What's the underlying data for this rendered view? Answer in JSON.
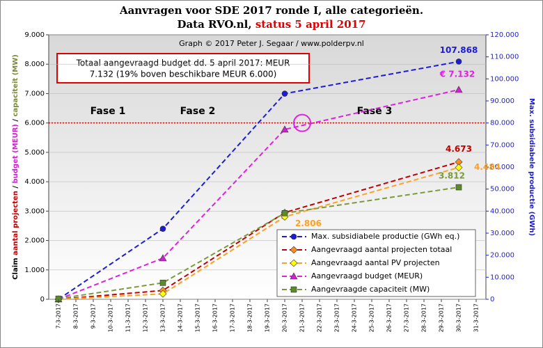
{
  "chart_data": {
    "type": "line",
    "title": [
      "Aanvragen voor SDE 2017 ronde I, alle categorieën.",
      "Data RVO.nl, ",
      "status 5 april 2017"
    ],
    "credit": "Graph  © 2017 Peter J. Segaar / www.polderpv.nl",
    "box_text": [
      "Totaal aangevraagd budget dd. 5 april 2017: MEUR",
      "7.132 (19% boven beschikbare MEUR 6.000)"
    ],
    "phases": [
      "Fase 1",
      "Fase 2",
      "Fase 3"
    ],
    "y_label": [
      "Claim ",
      "aantal projecten",
      " / ",
      "budget (MEUR)",
      " / ",
      "capaciteit (MW)"
    ],
    "y2_label": "Max. subsidiabele productie (GWh)",
    "categories": [
      "7-3-2017",
      "8-3-2017",
      "9-3-2017",
      "10-3-2017",
      "11-3-2017",
      "12-3-2017",
      "13-3-2017",
      "14-3-2017",
      "15-3-2017",
      "16-3-2017",
      "17-3-2017",
      "18-3-2017",
      "19-3-2017",
      "20-3-2017",
      "21-3-2017",
      "22-3-2017",
      "23-3-2017",
      "24-3-2017",
      "25-3-2017",
      "26-3-2017",
      "27-3-2017",
      "28-3-2017",
      "29-3-2017",
      "30-3-2017",
      "31-3-2017"
    ],
    "ylim": [
      0,
      9000
    ],
    "yticks": [
      0,
      {
        "value": 1000,
        "label": "1.000"
      },
      {
        "value": 2000,
        "label": "2.000"
      },
      {
        "value": 3000,
        "label": "3.000"
      },
      {
        "value": 4000,
        "label": "4.000"
      },
      {
        "value": 5000,
        "label": "5.000"
      },
      {
        "value": 6000,
        "label": "6.000"
      },
      {
        "value": 7000,
        "label": "7.000"
      },
      {
        "value": 8000,
        "label": "8.000"
      },
      {
        "value": 9000,
        "label": "9.000"
      }
    ],
    "y2lim": [
      0,
      120000
    ],
    "y2ticks": [
      0,
      {
        "value": 10000,
        "label": "10.000"
      },
      {
        "value": 20000,
        "label": "20.000"
      },
      {
        "value": 30000,
        "label": "30.000"
      },
      {
        "value": 40000,
        "label": "40.000"
      },
      {
        "value": 50000,
        "label": "50.000"
      },
      {
        "value": 60000,
        "label": "60.000"
      },
      {
        "value": 70000,
        "label": "70.000"
      },
      {
        "value": 80000,
        "label": "80.000"
      },
      {
        "value": 90000,
        "label": "90.000"
      },
      {
        "value": 100000,
        "label": "100.000"
      },
      {
        "value": 110000,
        "label": "110.000"
      },
      {
        "value": 120000,
        "label": "120.000"
      }
    ],
    "grid": true,
    "hline": {
      "value": 6000,
      "color": "#d00000"
    },
    "highlight": {
      "x": "21-3-2017",
      "value": 6000,
      "color": "#e020e0"
    },
    "series": [
      {
        "name": "Max. subsidiabele productie (GWh eq.)",
        "color": "#1c1cd8",
        "marker": "circle",
        "marker_color": "#1c1cd8",
        "axis": "y2",
        "x": [
          "7-3-2017",
          "13-3-2017",
          "20-3-2017",
          "30-3-2017"
        ],
        "values": [
          0,
          32000,
          93300,
          107868
        ],
        "value_labels": [
          null,
          null,
          null,
          "107.868"
        ]
      },
      {
        "name": "Aangevraagd aantal projecten totaal",
        "color": "#c00000",
        "marker": "diamond",
        "marker_color": "#ff8c20",
        "x": [
          "7-3-2017",
          "13-3-2017",
          "20-3-2017",
          "30-3-2017"
        ],
        "values": [
          0,
          300,
          2950,
          4673
        ],
        "value_labels": [
          null,
          null,
          null,
          "4.673"
        ]
      },
      {
        "name": "Aangevraagd aantal PV projecten",
        "color": "#ffa020",
        "marker": "diamond",
        "marker_color": "#ffff00",
        "x": [
          "7-3-2017",
          "13-3-2017",
          "20-3-2017",
          "30-3-2017"
        ],
        "values": [
          0,
          185,
          2806,
          4484
        ],
        "value_labels": [
          null,
          null,
          "2.806",
          "4.484"
        ]
      },
      {
        "name": "Aangevraagd budget (MEUR)",
        "color": "#e020e0",
        "marker": "triangle",
        "marker_color": "#d020d0",
        "x": [
          "7-3-2017",
          "13-3-2017",
          "20-3-2017",
          "30-3-2017"
        ],
        "values": [
          0,
          1400,
          5780,
          7132
        ],
        "value_labels": [
          null,
          null,
          null,
          "€ 7.132"
        ]
      },
      {
        "name": "Aangevraagde capaciteit (MW)",
        "color": "#7a9a3a",
        "marker": "square",
        "marker_color": "#5a8a2a",
        "x": [
          "7-3-2017",
          "13-3-2017",
          "20-3-2017",
          "30-3-2017"
        ],
        "values": [
          20,
          560,
          2930,
          3812
        ],
        "value_labels": [
          null,
          null,
          null,
          "3.812"
        ]
      }
    ]
  }
}
